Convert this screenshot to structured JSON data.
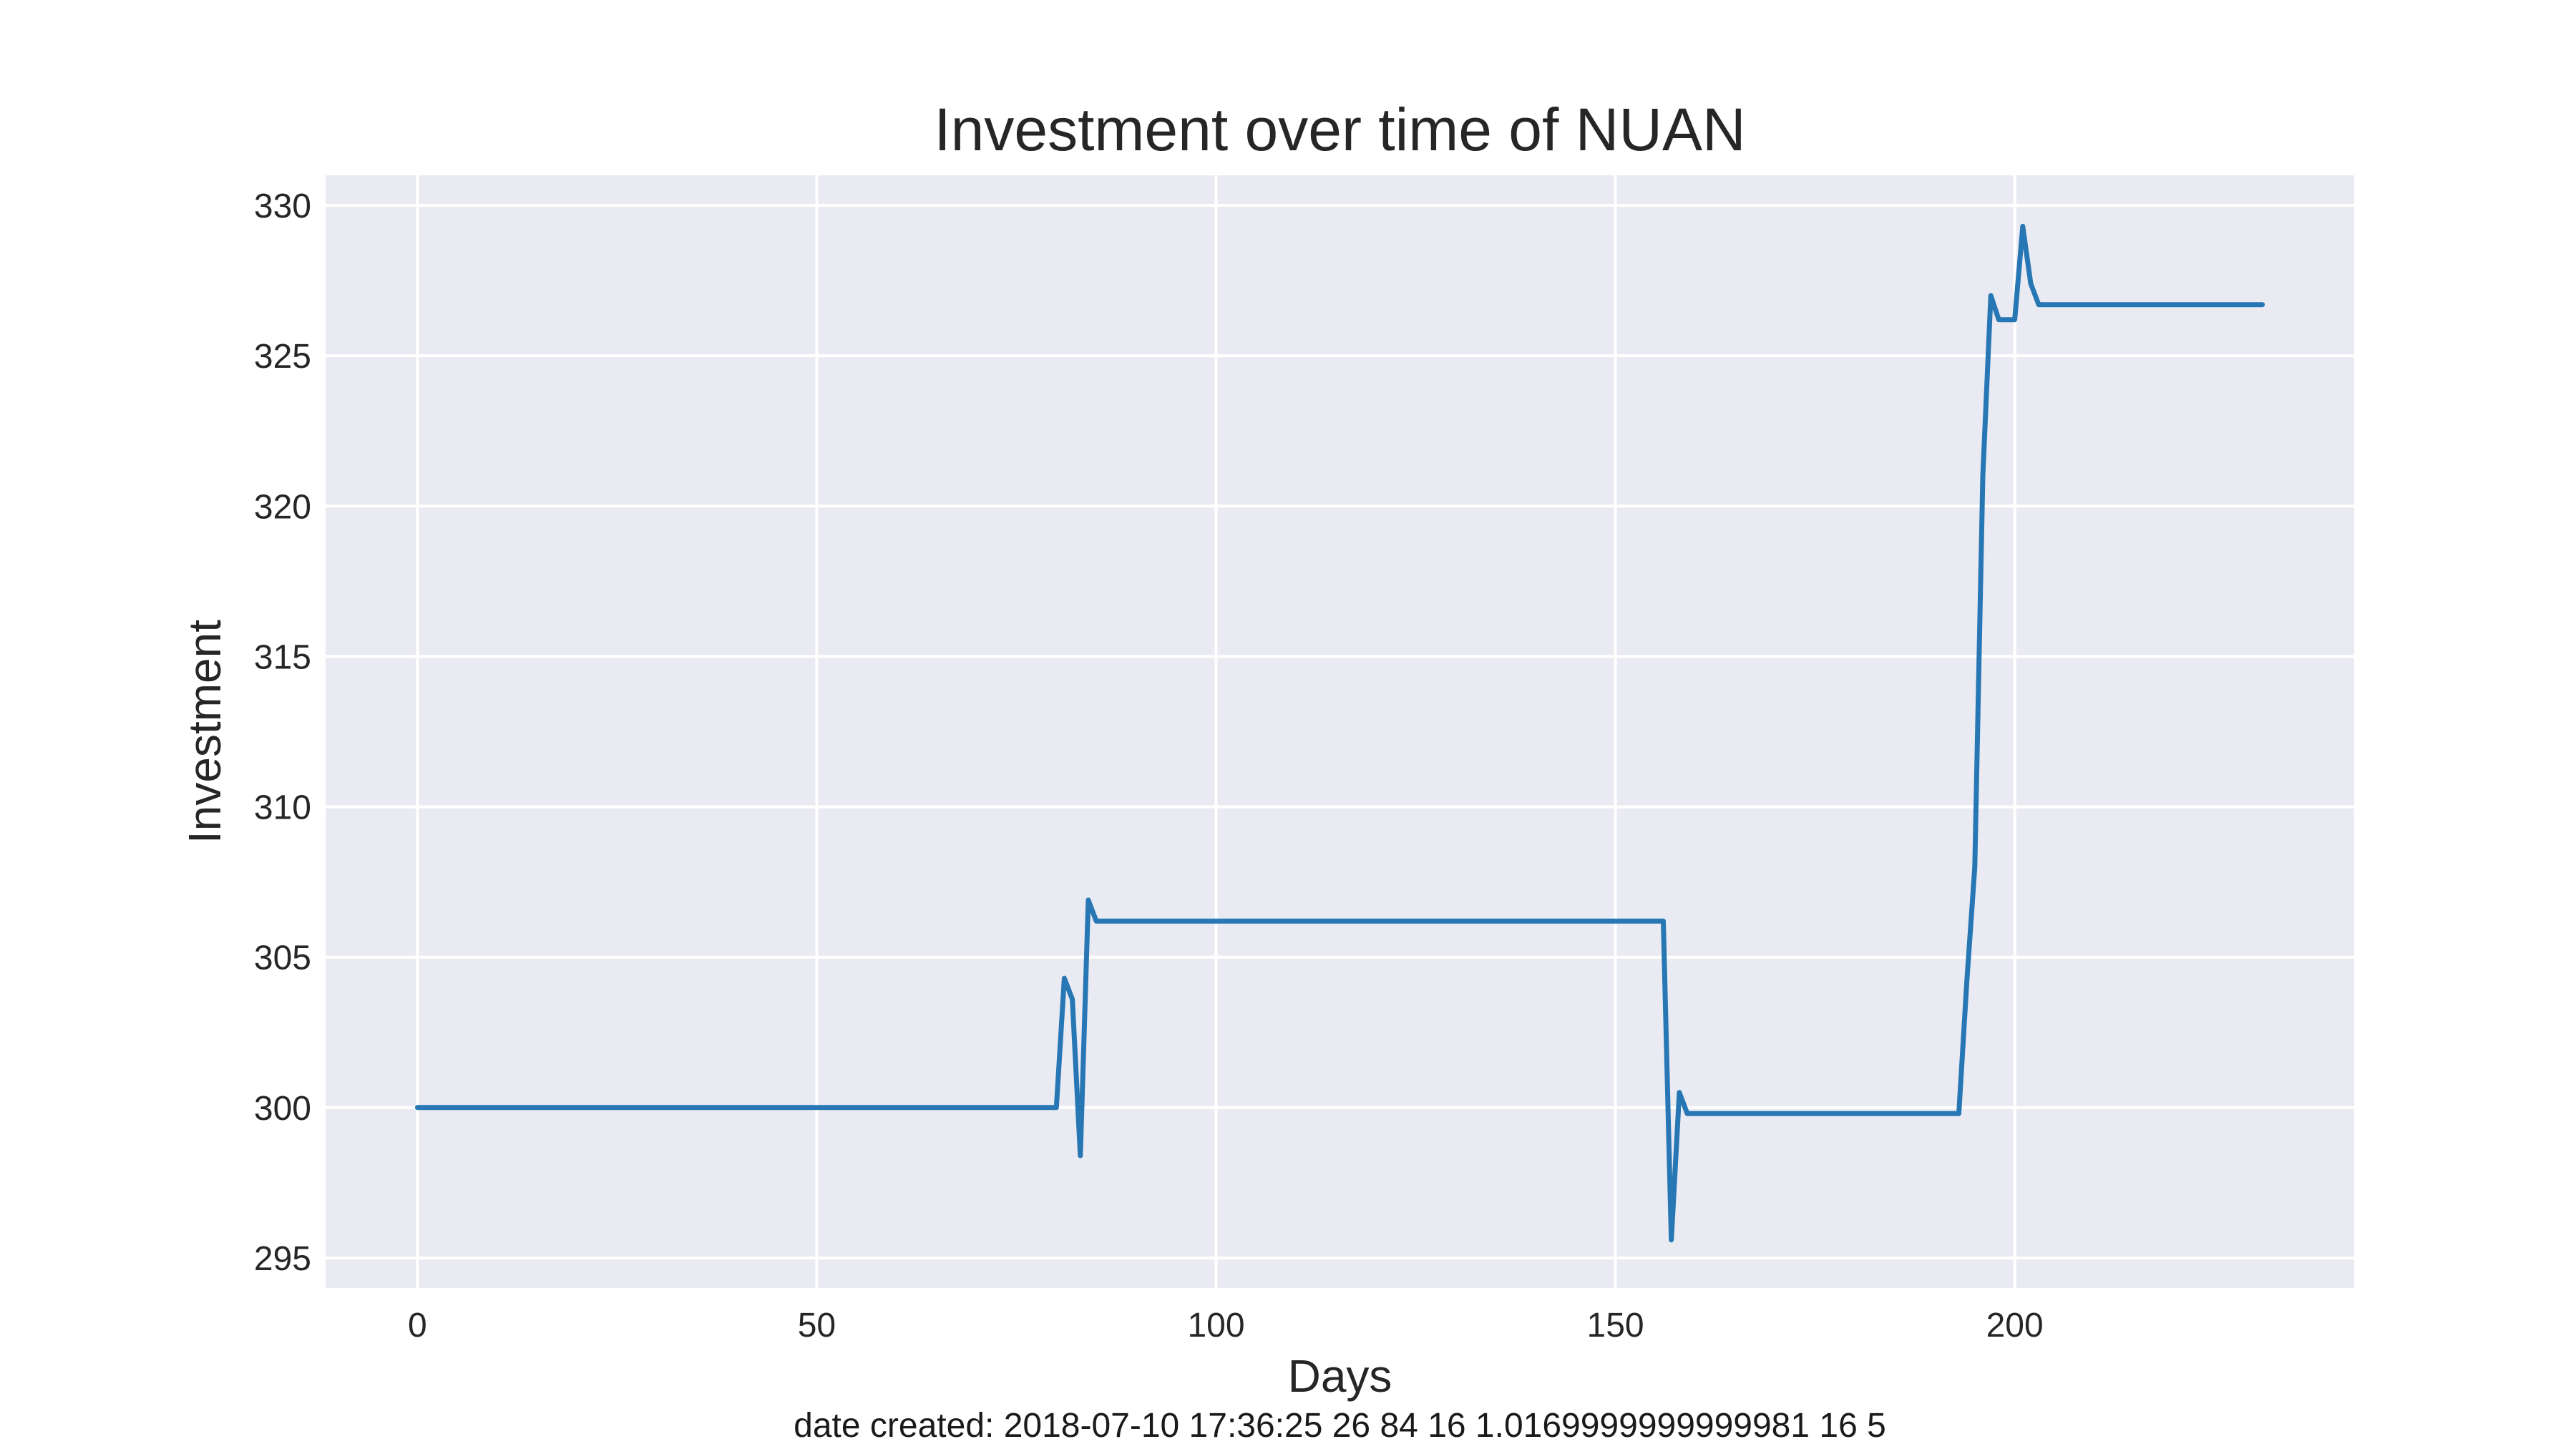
{
  "chart_data": {
    "type": "line",
    "title": "Investment over time of NUAN",
    "xlabel": "Days",
    "ylabel": "Investment",
    "footer": "date created: 2018-07-10 17:36:25 26 84 16 1.0169999999999981 16 5",
    "xlim": [
      -11.5,
      242.5
    ],
    "ylim": [
      294.0,
      331.0
    ],
    "xticks": [
      0,
      50,
      100,
      150,
      200
    ],
    "yticks": [
      295,
      300,
      305,
      310,
      315,
      320,
      325,
      330
    ],
    "grid": true,
    "colors": {
      "background": "#eaeaf2",
      "grid": "#ffffff",
      "line": "#2677b4"
    },
    "series": [
      {
        "points": [
          [
            0,
            300.0
          ],
          [
            80,
            300.0
          ],
          [
            81,
            304.3
          ],
          [
            82,
            303.6
          ],
          [
            83,
            298.4
          ],
          [
            84,
            306.9
          ],
          [
            85,
            306.2
          ],
          [
            156,
            306.2
          ],
          [
            157,
            295.6
          ],
          [
            158,
            300.5
          ],
          [
            159,
            299.8
          ],
          [
            193,
            299.8
          ],
          [
            194,
            304.2
          ],
          [
            195,
            308.0
          ],
          [
            196,
            321.0
          ],
          [
            197,
            327.0
          ],
          [
            198,
            326.2
          ],
          [
            200,
            326.2
          ],
          [
            201,
            329.3
          ],
          [
            202,
            327.4
          ],
          [
            203,
            326.7
          ],
          [
            231,
            326.7
          ]
        ]
      }
    ]
  }
}
